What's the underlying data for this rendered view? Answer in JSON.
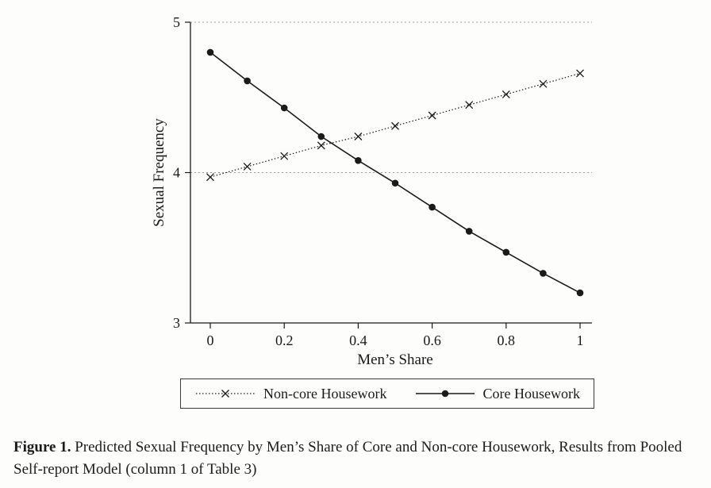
{
  "figure": {
    "caption_label": "Figure 1.",
    "caption_text": "Predicted Sexual Frequency by Men’s Share of Core and Non-core Housework, Results from Pooled Self-report Model (column 1 of Table 3)"
  },
  "chart_data": {
    "type": "line",
    "title": "",
    "xlabel": "Men’s Share",
    "ylabel": "Sexual Frequency",
    "xlim": [
      0,
      1
    ],
    "ylim": [
      3,
      5
    ],
    "x_ticks": [
      0,
      0.2,
      0.4,
      0.6,
      0.8,
      1
    ],
    "y_ticks": [
      3,
      4,
      5
    ],
    "gridlines_y": [
      4,
      5
    ],
    "grid_style": "dotted",
    "legend_position": "bottom-outside-boxed",
    "x": [
      0,
      0.1,
      0.2,
      0.3,
      0.4,
      0.5,
      0.6,
      0.7,
      0.8,
      0.9,
      1
    ],
    "series": [
      {
        "name": "Non-core Housework",
        "marker": "x",
        "line_style": "dotted",
        "values": [
          3.97,
          4.04,
          4.11,
          4.18,
          4.24,
          4.31,
          4.38,
          4.45,
          4.52,
          4.59,
          4.66
        ]
      },
      {
        "name": "Core Housework",
        "marker": "circle",
        "line_style": "solid",
        "values": [
          4.8,
          4.61,
          4.43,
          4.24,
          4.08,
          3.93,
          3.77,
          3.61,
          3.47,
          3.33,
          3.2
        ]
      }
    ],
    "colors": {
      "line": "#1a1a1a",
      "grid": "#9a9a9a"
    }
  }
}
